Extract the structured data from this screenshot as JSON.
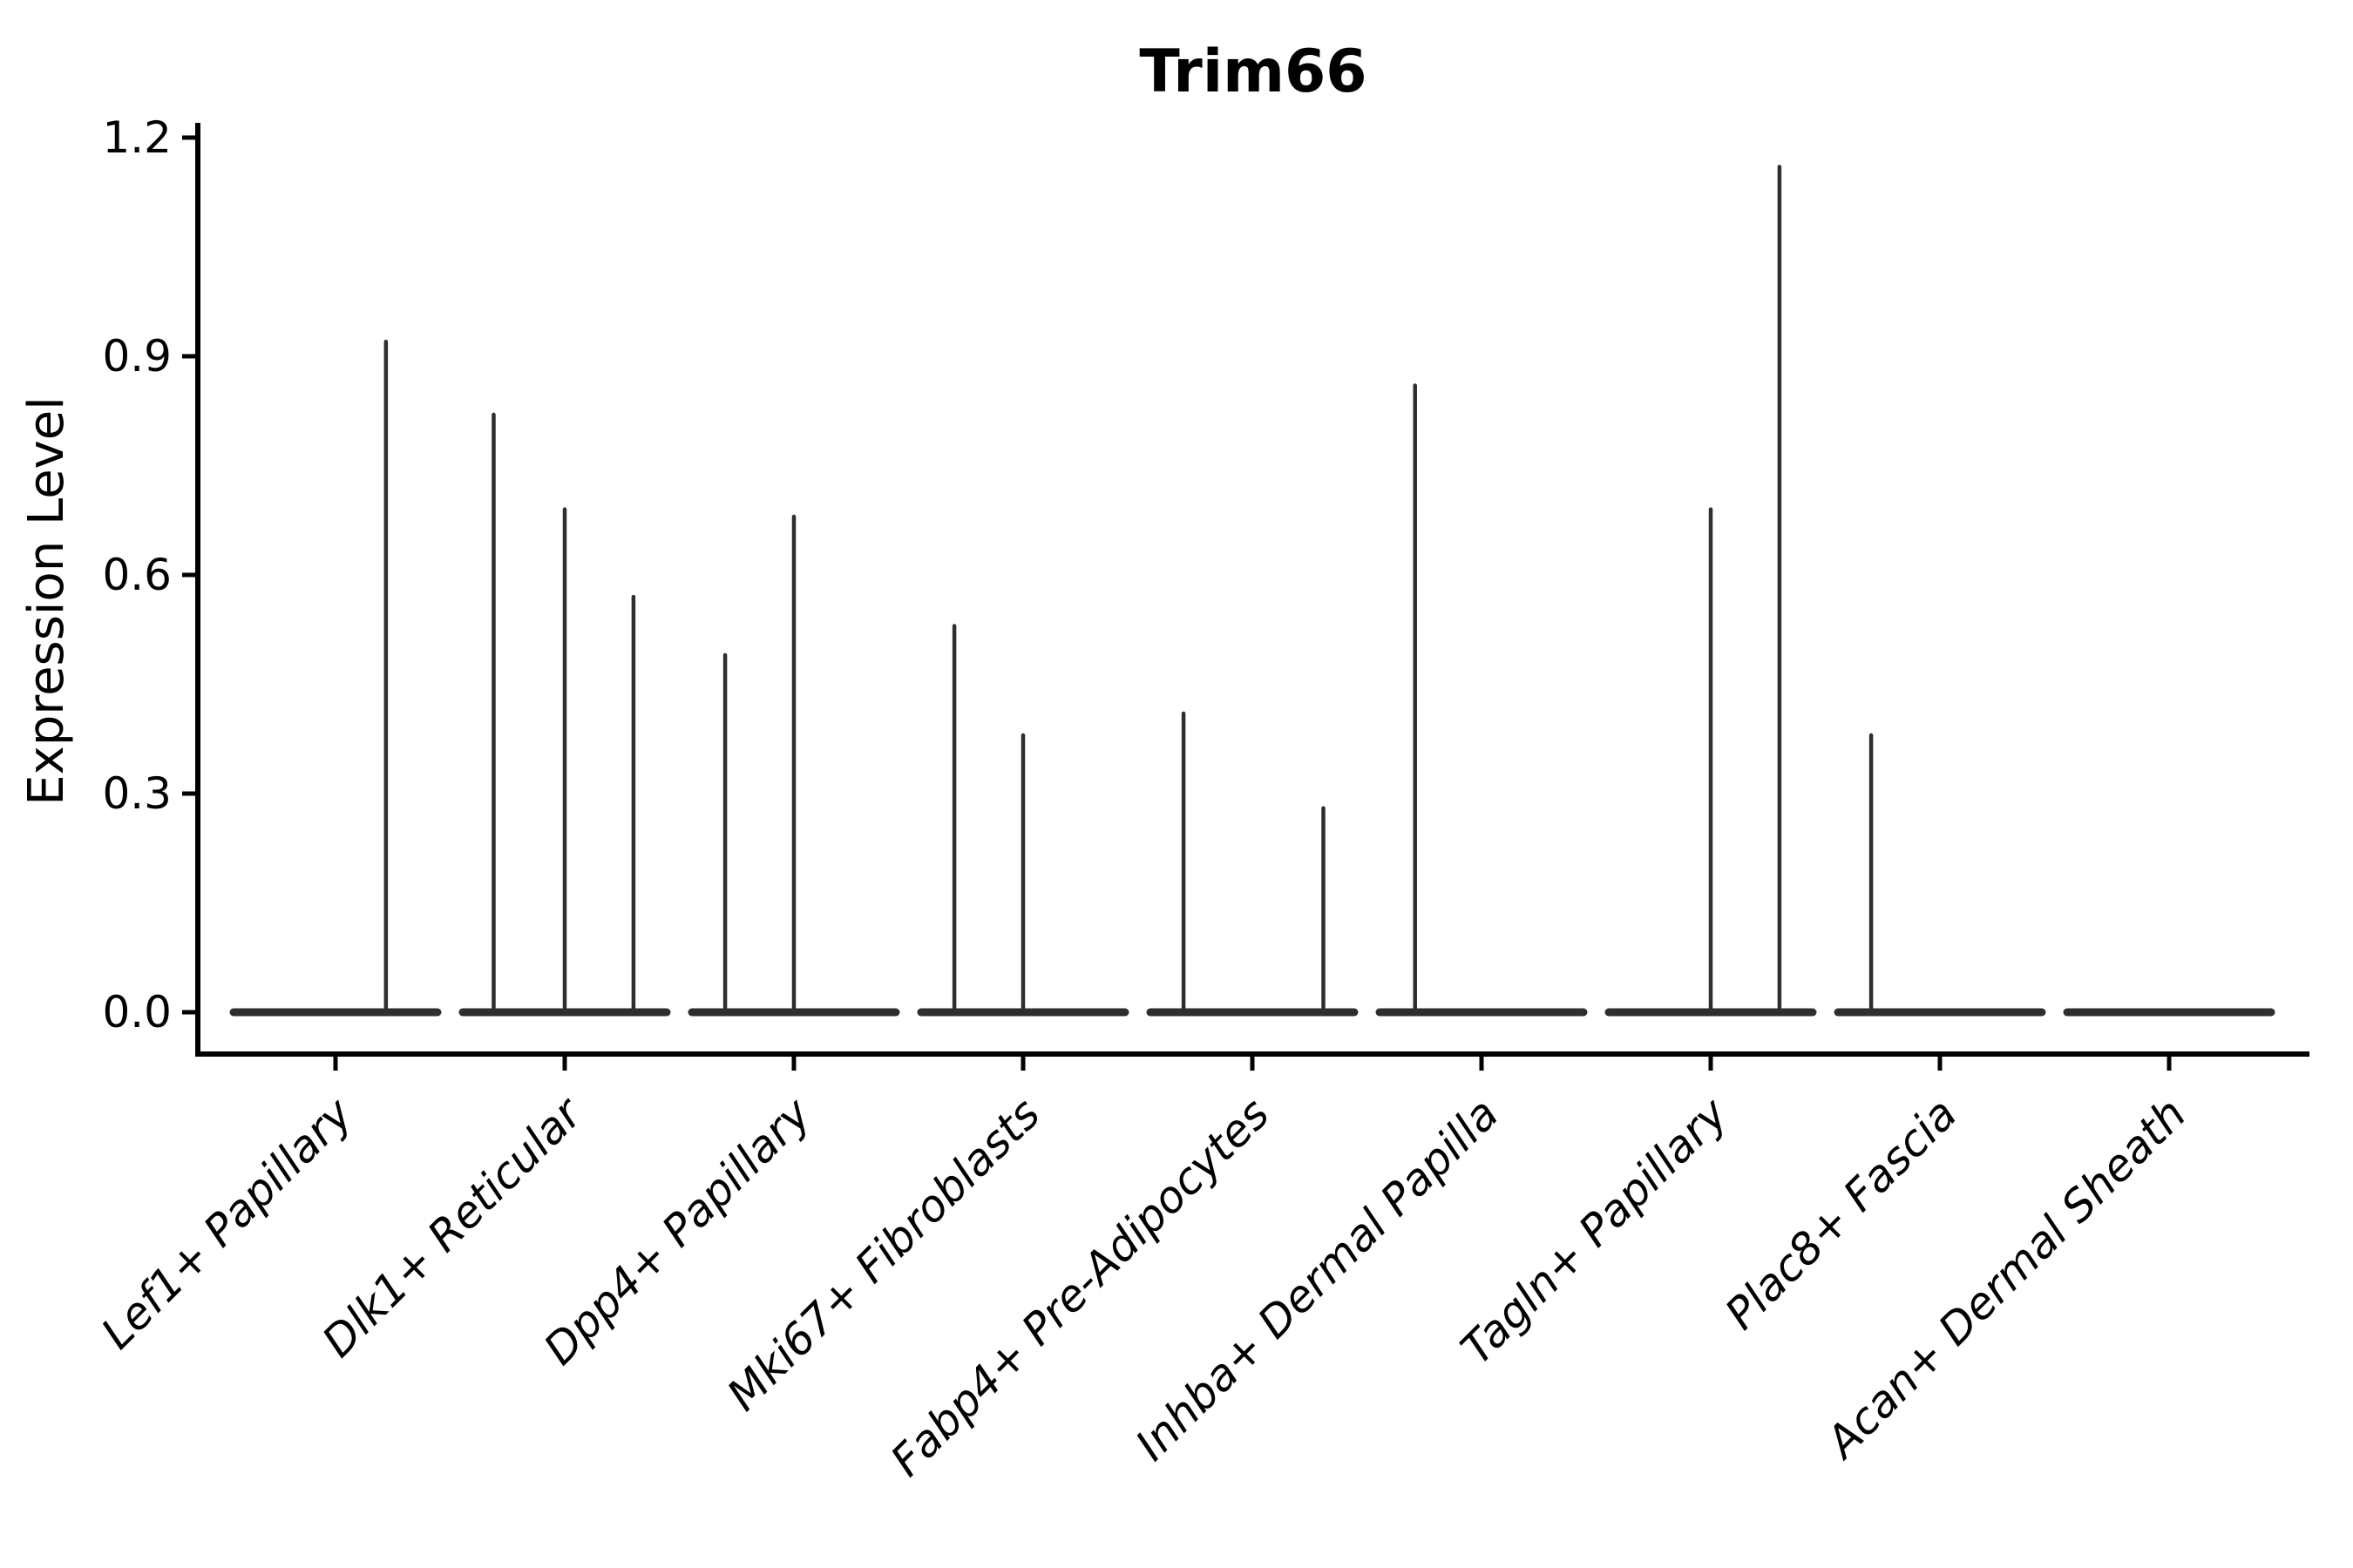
{
  "chart_data": {
    "type": "violin",
    "title": "Trim66",
    "ylabel": "Expression Level",
    "xlabel": "",
    "ylim": [
      -0.06,
      1.25
    ],
    "yticks": [
      0.0,
      0.3,
      0.6,
      0.9,
      1.2
    ],
    "ytick_labels": [
      "0.0",
      "0.3",
      "0.6",
      "0.9",
      "1.2"
    ],
    "grid": false,
    "legend": "none",
    "categories": [
      "Lef1+ Papillary",
      "Dlk1+ Reticular",
      "Dpp4+ Papillary",
      "Mki67+ Fibroblasts",
      "Fabp4+ Pre-Adipocytes",
      "Inhba+ Dermal Papilla",
      "Tagln+ Papillary",
      "Plac8+ Fascia",
      "Acan+ Dermal Sheath"
    ],
    "series": [
      {
        "category": "Lef1+ Papillary",
        "baseline_value": 0.0,
        "spikes": [
          {
            "dx": 0.22,
            "value": 0.92
          }
        ]
      },
      {
        "category": "Dlk1+ Reticular",
        "baseline_value": 0.0,
        "spikes": [
          {
            "dx": -0.31,
            "value": 0.82
          },
          {
            "dx": 0.0,
            "value": 0.69
          },
          {
            "dx": 0.3,
            "value": 0.57
          }
        ]
      },
      {
        "category": "Dpp4+ Papillary",
        "baseline_value": 0.0,
        "spikes": [
          {
            "dx": -0.3,
            "value": 0.49
          },
          {
            "dx": 0.0,
            "value": 0.68
          }
        ]
      },
      {
        "category": "Mki67+ Fibroblasts",
        "baseline_value": 0.0,
        "spikes": [
          {
            "dx": -0.3,
            "value": 0.53
          },
          {
            "dx": 0.0,
            "value": 0.38
          }
        ]
      },
      {
        "category": "Fabp4+ Pre-Adipocytes",
        "baseline_value": 0.0,
        "spikes": [
          {
            "dx": -0.3,
            "value": 0.41
          },
          {
            "dx": 0.31,
            "value": 0.28
          }
        ]
      },
      {
        "category": "Inhba+ Dermal Papilla",
        "baseline_value": 0.0,
        "spikes": [
          {
            "dx": -0.29,
            "value": 0.86
          }
        ]
      },
      {
        "category": "Tagln+ Papillary",
        "baseline_value": 0.0,
        "spikes": [
          {
            "dx": 0.0,
            "value": 0.69
          },
          {
            "dx": 0.3,
            "value": 1.16
          }
        ]
      },
      {
        "category": "Plac8+ Fascia",
        "baseline_value": 0.0,
        "spikes": [
          {
            "dx": -0.3,
            "value": 0.38
          }
        ]
      },
      {
        "category": "Acan+ Dermal Sheath",
        "baseline_value": 0.0,
        "spikes": []
      }
    ],
    "style": {
      "violin_color": "#2e2e2e",
      "axis_color": "#000000",
      "text_color": "#000000",
      "background": "#ffffff"
    }
  }
}
